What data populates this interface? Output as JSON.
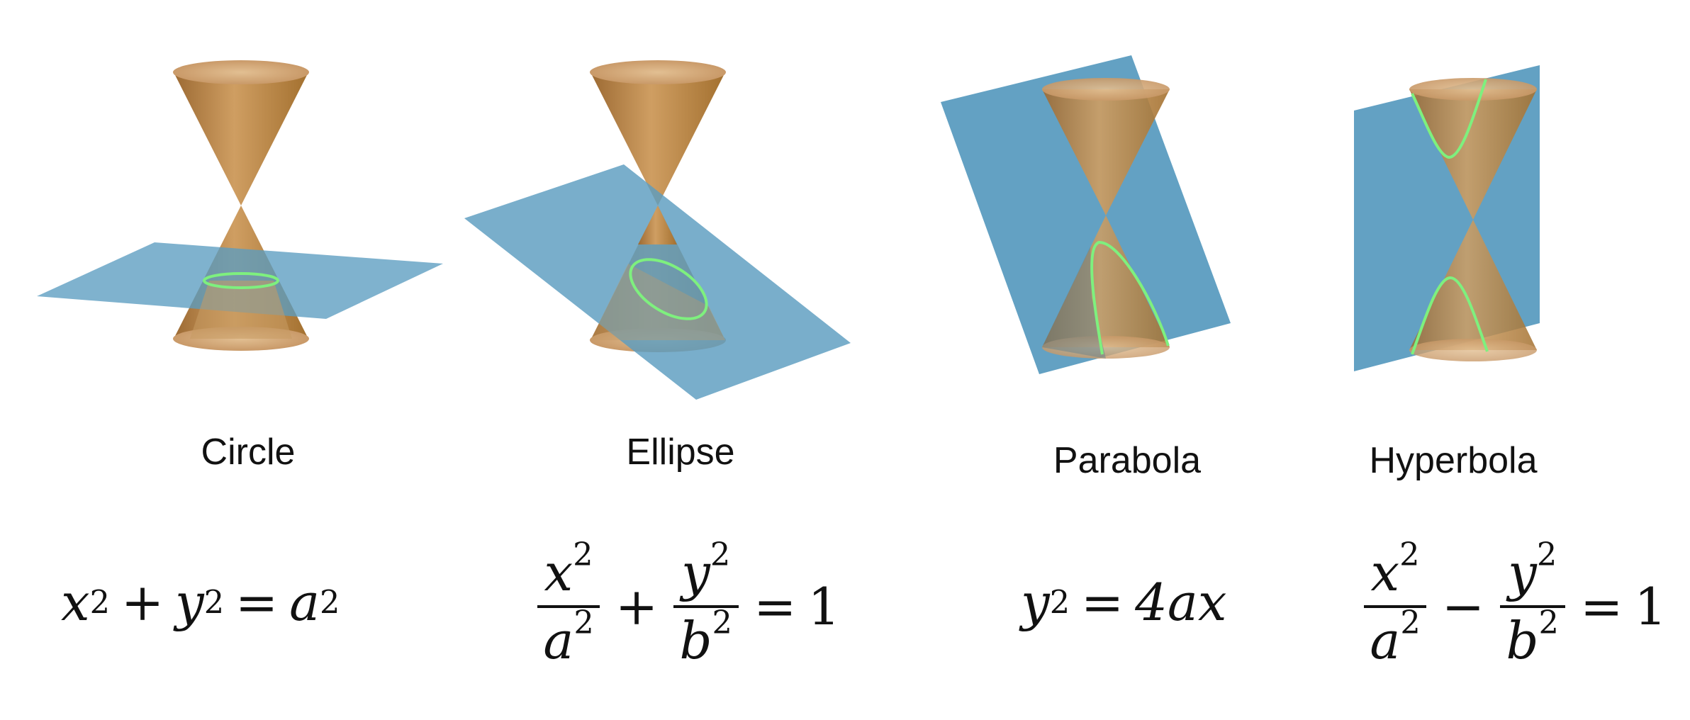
{
  "panels": [
    {
      "name": "Circle",
      "formula": {
        "x": "x",
        "y": "y",
        "a": "a",
        "two": "2",
        "plus": "+",
        "eq": "="
      }
    },
    {
      "name": "Ellipse",
      "formula": {
        "x": "x",
        "y": "y",
        "a": "a",
        "b": "b",
        "two": "2",
        "plus": "+",
        "eq": "=",
        "one": "1"
      }
    },
    {
      "name": "Parabola",
      "formula": {
        "y": "y",
        "two": "2",
        "eq": "=",
        "rhs": "4ax"
      }
    },
    {
      "name": "Hyperbola",
      "formula": {
        "x": "x",
        "y": "y",
        "a": "a",
        "b": "b",
        "two": "2",
        "minus": "−",
        "eq": "=",
        "one": "1"
      }
    }
  ],
  "colors": {
    "cone_light": "#d8b07c",
    "cone_dark": "#a8733a",
    "plane": "#5b9cc0",
    "curve": "#7ef07e"
  }
}
